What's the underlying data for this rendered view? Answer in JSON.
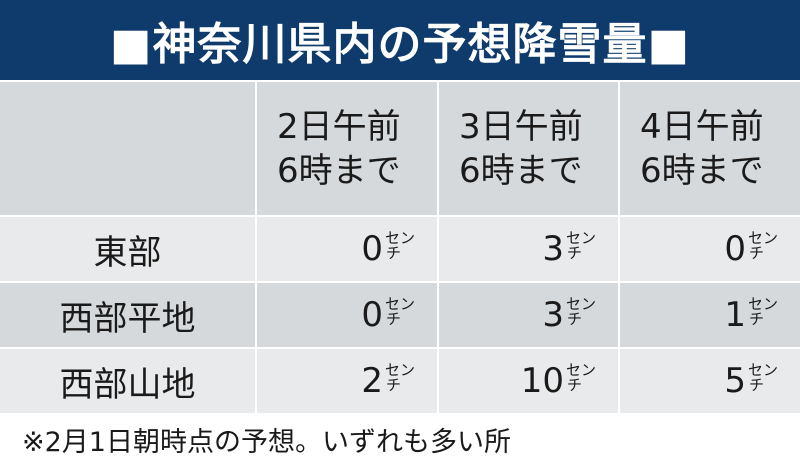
{
  "title": "■神奈川県内の予想降雪量■",
  "chart_data": {
    "type": "table",
    "columns": [
      "2日午前\n6時まで",
      "3日午前\n6時まで",
      "4日午前\n6時まで"
    ],
    "rows": [
      {
        "label": "東部",
        "values": [
          "0",
          "3",
          "0"
        ]
      },
      {
        "label": "西部平地",
        "values": [
          "0",
          "3",
          "1"
        ]
      },
      {
        "label": "西部山地",
        "values": [
          "2",
          "10",
          "5"
        ]
      }
    ],
    "unit_top": "セン",
    "unit_bottom": "チ"
  },
  "colors": {
    "title_bg": "#0e3b6b",
    "header_bg": "#d6d9dc",
    "row_light": "#e9eaeb",
    "row_dark": "#d6d9dc"
  },
  "note": "※2月1日朝時点の予想。いずれも多い所"
}
